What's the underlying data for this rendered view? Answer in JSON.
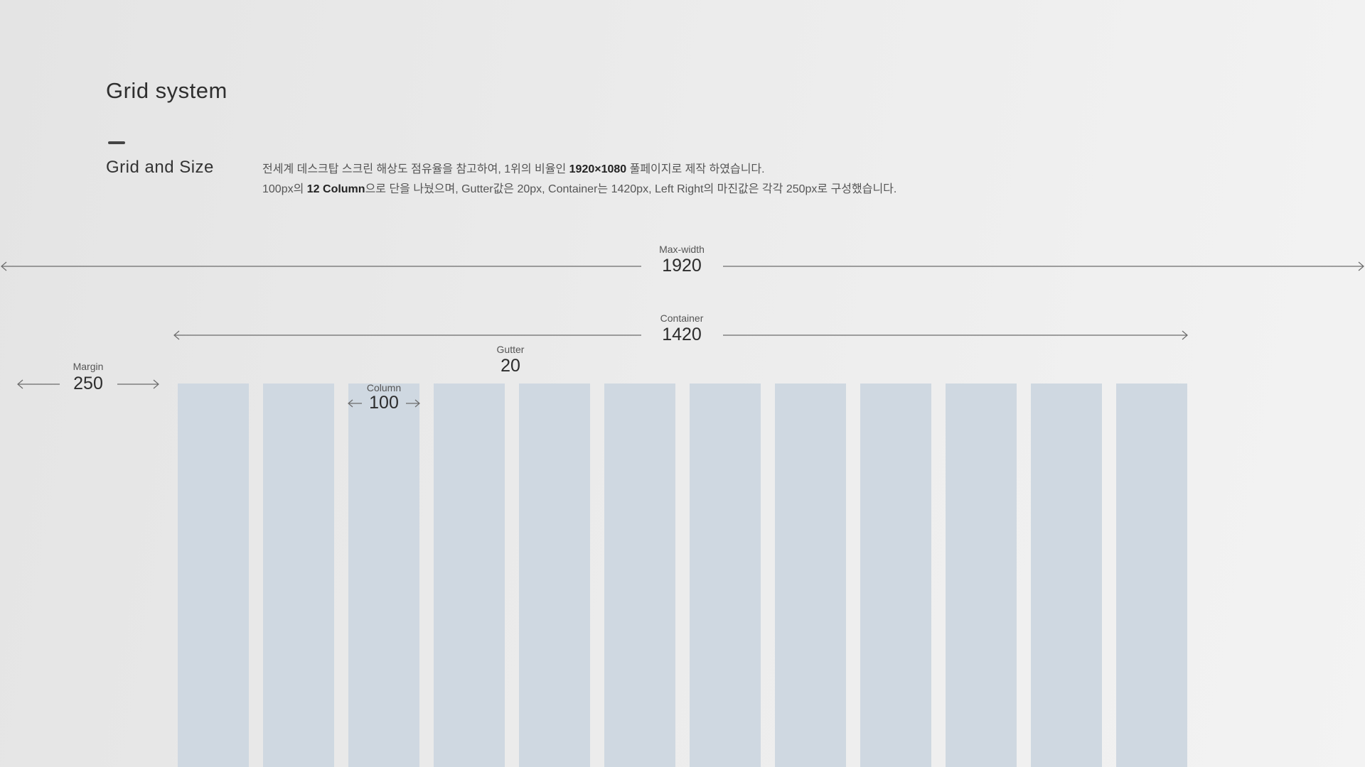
{
  "header": {
    "title": "Grid system",
    "section_title": "Grid and Size"
  },
  "description": {
    "line1_a": "전세계 데스크탑 스크린 해상도 점유율을 참고하여, 1위의 비율인 ",
    "line1_b": "1920×1080",
    "line1_c": " 풀페이지로 제작 하였습니다.",
    "line2_a": "100px의 ",
    "line2_b": "12 Column",
    "line2_c": "으로 단을 나눴으며, Gutter값은 20px, Container는 1420px, Left Right의 마진값은 각각 250px로 구성했습니다."
  },
  "dimensions": {
    "max_width": {
      "label": "Max-width",
      "value": "1920"
    },
    "container": {
      "label": "Container",
      "value": "1420"
    },
    "margin": {
      "label": "Margin",
      "value": "250"
    },
    "gutter": {
      "label": "Gutter",
      "value": "20"
    },
    "column": {
      "label": "Column",
      "value": "100"
    }
  },
  "grid": {
    "column_count": 12,
    "column_color": "#cfd8e1",
    "line_color": "#6b6b6b"
  }
}
